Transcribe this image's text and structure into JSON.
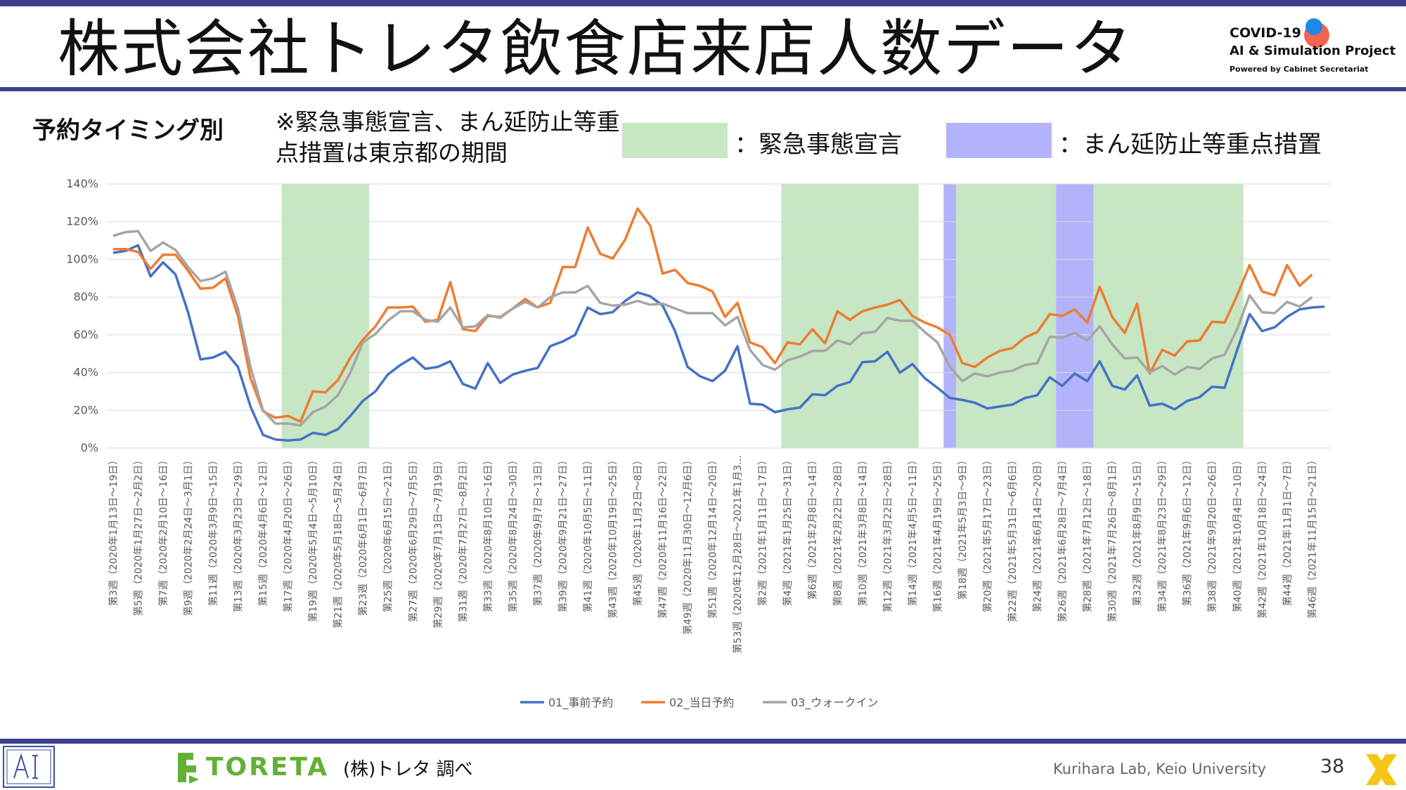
{
  "header": {
    "title": "株式会社トレタ飲食店来店人数データ",
    "logo_line1": "COVID-19",
    "logo_line2": "AI & Simulation Project",
    "logo_line3": "Powered by Cabinet Secretariat"
  },
  "subtitle": "予約タイミング別",
  "note": "※緊急事態宣言、まん延防止等重点措置は東京都の期間",
  "legend_boxes": {
    "emergency_label": "：緊急事態宣言",
    "emergency_color": "#c6e6c4",
    "priority_label": "：まん延防止等重点措置",
    "priority_color": "#b3b3fb"
  },
  "footer": {
    "source": "(株)トレタ 調べ",
    "lab": "Kurihara Lab, Keio University",
    "page": "38",
    "brand": "TORETA"
  },
  "chart_data": {
    "type": "line",
    "ylim": [
      0,
      140
    ],
    "y_ticks": [
      "0%",
      "20%",
      "40%",
      "60%",
      "80%",
      "100%",
      "120%",
      "140%"
    ],
    "grid": true,
    "legend_position": "bottom",
    "shaded_periods": [
      {
        "kind": "emergency",
        "start": 14,
        "end": 21,
        "color": "#c6e6c4"
      },
      {
        "kind": "emergency",
        "start": 54,
        "end": 65,
        "color": "#c6e6c4"
      },
      {
        "kind": "priority",
        "start": 67,
        "end": 68,
        "color": "#b3b3fb"
      },
      {
        "kind": "emergency",
        "start": 68,
        "end": 76,
        "color": "#c6e6c4"
      },
      {
        "kind": "priority",
        "start": 76,
        "end": 79,
        "color": "#b3b3fb"
      },
      {
        "kind": "emergency",
        "start": 79,
        "end": 91,
        "color": "#c6e6c4"
      }
    ],
    "x_labels": [
      "第3週（2020年1月13日～19日）",
      "第5週（2020年1月27日～2月2日）",
      "第7週（2020年2月10日～16日）",
      "第9週（2020年2月24日～3月1日）",
      "第11週（2020年3月9日～15日）",
      "第13週（2020年3月23日～29日）",
      "第15週（2020年4月6日～12日）",
      "第17週（2020年4月20日～26日）",
      "第19週（2020年5月4日～5月10日）",
      "第21週（2020年5月18日～5月24日）",
      "第23週（2020年6月1日～6月7日）",
      "第25週（2020年6月15日～21日）",
      "第27週（2020年6月29日～7月5日）",
      "第29週（2020年7月13日～7月19日）",
      "第31週（2020年7月27日～8月2日）",
      "第33週（2020年8月10日～16日）",
      "第35週（2020年8月24日～30日）",
      "第37週（2020年9月7日～13日）",
      "第39週（2020年9月21日～27日）",
      "第41週（2020年10月5日～11日）",
      "第43週（2020年10月19日～25日）",
      "第45週（2020年11月2日～8日）",
      "第47週（2020年11月16日～22日）",
      "第49週（2020年11月30日～12月6日）",
      "第51週（2020年12月14日～20日）",
      "第53週（2020年12月28日～2021年1月3…",
      "第2週（2021年1月11日～17日）",
      "第4週（2021年1月25日～31日）",
      "第6週（2021年2月8日～14日）",
      "第8週（2021年2月22日～28日）",
      "第10週（2021年3月8日～14日）",
      "第12週（2021年3月22日～28日）",
      "第14週（2021年4月5日～11日）",
      "第16週（2021年4月19日～25日）",
      "第18週（2021年5月3日～9日）",
      "第20週（2021年5月17日～23日）",
      "第22週（2021年5月31日～6月6日）",
      "第24週（2021年6月14日～20日）",
      "第26週（2021年6月28日～7月4日）",
      "第28週（2021年7月12日～18日）",
      "第30週（2021年7月26日～8月1日）",
      "第32週（2021年8月9日～15日）",
      "第34週（2021年8月23日～29日）",
      "第36週（2021年9月6日～12日）",
      "第38週（2021年9月20日～26日）",
      "第40週（2021年10月4日～10日）",
      "第42週（2021年10月18日～24日）",
      "第44週（2021年11月1日～7日）",
      "第46週（2021年11月15日～21日）"
    ],
    "series": [
      {
        "name": "01_事前予約",
        "color": "#4472c4",
        "values": [
          103.5,
          104.5,
          107.5,
          91,
          98.5,
          92,
          72,
          47,
          48,
          51,
          43,
          22,
          7,
          4.5,
          4,
          4.5,
          8,
          7,
          10,
          17,
          25,
          30,
          39,
          44,
          48,
          42,
          43,
          46,
          34,
          31.5,
          45,
          34.5,
          39,
          41,
          42.5,
          54,
          56.5,
          60,
          74.5,
          71,
          72,
          78,
          82.5,
          80.5,
          75.5,
          62,
          43,
          38,
          35.5,
          41,
          54,
          23.5,
          23,
          19,
          20.5,
          21.5,
          28.5,
          28,
          33,
          35,
          45.5,
          46,
          51,
          40,
          44.5,
          37,
          32,
          26.5,
          25.5,
          24,
          21,
          22,
          23,
          26.5,
          28,
          37.5,
          33,
          39.5,
          35.5,
          46,
          33,
          31,
          38.5,
          22.5,
          23.5,
          20.5,
          25,
          27,
          32.5,
          32,
          52,
          71,
          62,
          64,
          69.5,
          73.5,
          74.5,
          75
        ]
      },
      {
        "name": "02_当日予約",
        "color": "#ed7d31",
        "values": [
          105.5,
          105.5,
          104,
          95,
          102.5,
          102.5,
          94,
          84.5,
          85,
          90,
          70,
          37,
          19.5,
          16,
          17,
          14,
          30,
          29.5,
          36,
          48,
          57.5,
          64.5,
          74.5,
          74.5,
          75,
          67,
          68,
          88,
          63,
          62,
          70,
          69.5,
          74,
          79,
          74.5,
          77,
          96,
          96,
          117,
          103,
          100.5,
          110.5,
          127,
          118,
          92.5,
          94.5,
          87.5,
          86,
          83,
          69.5,
          77,
          56,
          53.5,
          45,
          56,
          55,
          63,
          55.5,
          72.5,
          68,
          72.5,
          74.5,
          76,
          78.5,
          70,
          66.5,
          64,
          60,
          45,
          43,
          48,
          51.5,
          53,
          58.5,
          61.5,
          71,
          70,
          73.5,
          66.5,
          85.5,
          69.5,
          61,
          76.5,
          39.5,
          52,
          49,
          56.5,
          57,
          67,
          66.5,
          81,
          97,
          83,
          81,
          97,
          86,
          92
        ]
      },
      {
        "name": "03_ウォークイン",
        "color": "#a5a5a5",
        "values": [
          112.5,
          114.5,
          115,
          104.5,
          109,
          105,
          96,
          88.5,
          90,
          93.5,
          74,
          43,
          20,
          13,
          13,
          12,
          19,
          22,
          28,
          40,
          56,
          60.5,
          67.5,
          72.5,
          72.5,
          68,
          67,
          74.5,
          64,
          64.5,
          70.5,
          69,
          74,
          77.5,
          74.5,
          80,
          82.5,
          82.5,
          86,
          77,
          75.5,
          76,
          78,
          76,
          76.5,
          74,
          71.5,
          71.5,
          71.5,
          65,
          69.5,
          52,
          44,
          41.5,
          46.5,
          48.5,
          51.5,
          51.5,
          57,
          55,
          61,
          61.5,
          69,
          67.5,
          67.5,
          61.5,
          56,
          43,
          35.5,
          39.5,
          38,
          40,
          41,
          44,
          45,
          59,
          58.5,
          61,
          57,
          64.5,
          55,
          47.5,
          48,
          40,
          43.5,
          39,
          43,
          42,
          47.5,
          49.5,
          63,
          81,
          72,
          71.5,
          77.5,
          75,
          80
        ]
      }
    ]
  }
}
